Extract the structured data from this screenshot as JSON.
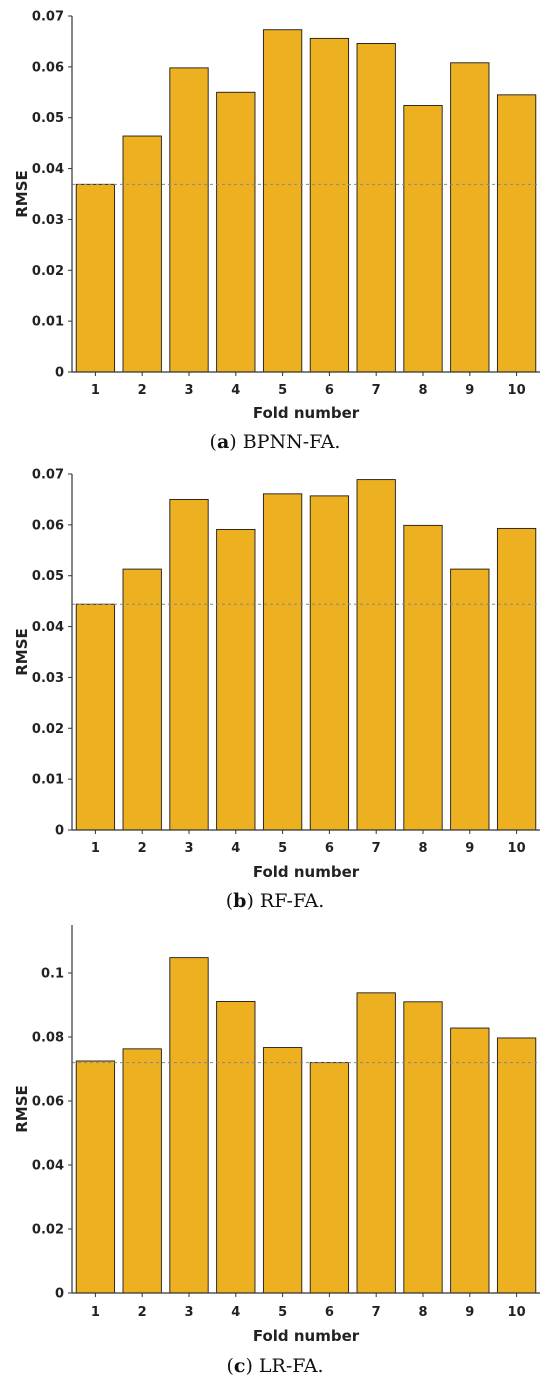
{
  "colors": {
    "bar": "#ecb021",
    "bar_stroke": "#1a1a1a",
    "axis": "#333333",
    "dashed": "#888888"
  },
  "chart_data": [
    {
      "type": "bar",
      "caption_letter": "a",
      "caption_text": " BPNN-FA.",
      "xlabel": "Fold number",
      "ylabel": "RMSE",
      "categories": [
        "1",
        "2",
        "3",
        "4",
        "5",
        "6",
        "7",
        "8",
        "9",
        "10"
      ],
      "values": [
        0.0369,
        0.0464,
        0.0598,
        0.055,
        0.0673,
        0.0656,
        0.0646,
        0.0524,
        0.0608,
        0.0545
      ],
      "ylim": [
        0,
        0.07
      ],
      "yticks": [
        "0",
        "0.01",
        "0.02",
        "0.03",
        "0.04",
        "0.05",
        "0.06",
        "0.07"
      ],
      "reference_line": 0.0369,
      "grid": false
    },
    {
      "type": "bar",
      "caption_letter": "b",
      "caption_text": " RF-FA.",
      "xlabel": "Fold number",
      "ylabel": "RMSE",
      "categories": [
        "1",
        "2",
        "3",
        "4",
        "5",
        "6",
        "7",
        "8",
        "9",
        "10"
      ],
      "values": [
        0.0444,
        0.0513,
        0.065,
        0.0591,
        0.0661,
        0.0657,
        0.0689,
        0.0599,
        0.0513,
        0.0593
      ],
      "ylim": [
        0,
        0.07
      ],
      "yticks": [
        "0",
        "0.01",
        "0.02",
        "0.03",
        "0.04",
        "0.05",
        "0.06",
        "0.07"
      ],
      "reference_line": 0.0444,
      "grid": false
    },
    {
      "type": "bar",
      "caption_letter": "c",
      "caption_text": " LR-FA.",
      "xlabel": "Fold number",
      "ylabel": "RMSE",
      "categories": [
        "1",
        "2",
        "3",
        "4",
        "5",
        "6",
        "7",
        "8",
        "9",
        "10"
      ],
      "values": [
        0.0725,
        0.0763,
        0.1048,
        0.0911,
        0.0767,
        0.072,
        0.0938,
        0.091,
        0.0828,
        0.0797
      ],
      "ylim": [
        0,
        0.115
      ],
      "yticks": [
        "0",
        "0.02",
        "0.04",
        "0.06",
        "0.08",
        "0.1"
      ],
      "reference_line": 0.072,
      "grid": false
    }
  ]
}
